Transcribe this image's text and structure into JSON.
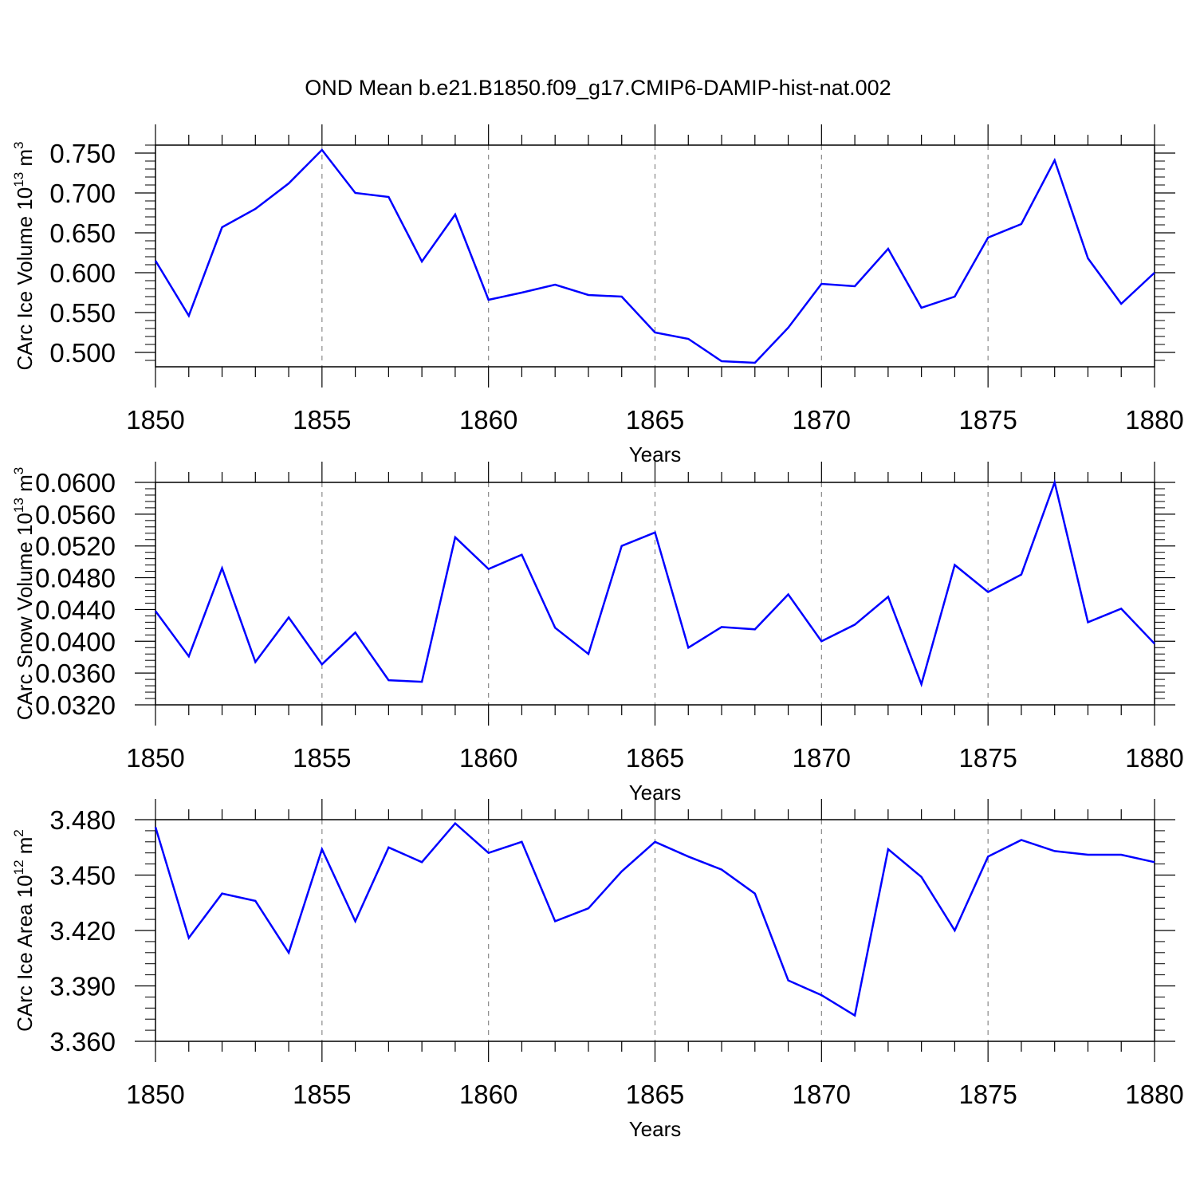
{
  "figure": {
    "title": "OND Mean b.e21.B1850.f09_g17.CMIP6-DAMIP-hist-nat.002"
  },
  "chart_data": [
    {
      "type": "line",
      "ylabel": "CArc Ice Volume 10",
      "ylabel_sup": "13",
      "ylabel_unit": " m",
      "ylabel_unit_sup": "3",
      "xlabel": "Years",
      "xlim": [
        1850,
        1880
      ],
      "ylim": [
        0.482,
        0.76
      ],
      "x_ticks": [
        "1850",
        "1855",
        "1860",
        "1865",
        "1870",
        "1875",
        "1880"
      ],
      "y_ticks": [
        0.5,
        0.55,
        0.6,
        0.65,
        0.7,
        0.75
      ],
      "y_tick_labels": [
        "0.500",
        "0.550",
        "0.600",
        "0.650",
        "0.700",
        "0.750"
      ],
      "grid": "vertical dashed at major x ticks",
      "color": "#0000ff",
      "x": [
        1850,
        1851,
        1852,
        1853,
        1854,
        1855,
        1856,
        1857,
        1858,
        1859,
        1860,
        1861,
        1862,
        1863,
        1864,
        1865,
        1866,
        1867,
        1868,
        1869,
        1870,
        1871,
        1872,
        1873,
        1874,
        1875,
        1876,
        1877,
        1878,
        1879,
        1880
      ],
      "values": [
        0.615,
        0.546,
        0.657,
        0.68,
        0.712,
        0.754,
        0.7,
        0.695,
        0.614,
        0.673,
        0.566,
        0.575,
        0.585,
        0.572,
        0.57,
        0.525,
        0.517,
        0.489,
        0.487,
        0.531,
        0.586,
        0.583,
        0.63,
        0.556,
        0.57,
        0.644,
        0.661,
        0.741,
        0.618,
        0.561,
        0.6
      ]
    },
    {
      "type": "line",
      "ylabel": "CArc Snow Volume 10",
      "ylabel_sup": "13",
      "ylabel_unit": " m",
      "ylabel_unit_sup": "3",
      "xlabel": "Years",
      "xlim": [
        1850,
        1880
      ],
      "ylim": [
        0.032,
        0.06
      ],
      "x_ticks": [
        "1850",
        "1855",
        "1860",
        "1865",
        "1870",
        "1875",
        "1880"
      ],
      "y_ticks": [
        0.032,
        0.036,
        0.04,
        0.044,
        0.048,
        0.052,
        0.056,
        0.06
      ],
      "y_tick_labels": [
        "0.0320",
        "0.0360",
        "0.0400",
        "0.0440",
        "0.0480",
        "0.0520",
        "0.0560",
        "0.0600"
      ],
      "grid": "vertical dashed at major x ticks",
      "color": "#0000ff",
      "x": [
        1850,
        1851,
        1852,
        1853,
        1854,
        1855,
        1856,
        1857,
        1858,
        1859,
        1860,
        1861,
        1862,
        1863,
        1864,
        1865,
        1866,
        1867,
        1868,
        1869,
        1870,
        1871,
        1872,
        1873,
        1874,
        1875,
        1876,
        1877,
        1878,
        1879,
        1880
      ],
      "values": [
        0.0438,
        0.0381,
        0.0492,
        0.0374,
        0.043,
        0.0371,
        0.0411,
        0.0351,
        0.0349,
        0.0531,
        0.0491,
        0.0509,
        0.0417,
        0.0384,
        0.052,
        0.0537,
        0.0392,
        0.0418,
        0.0415,
        0.0459,
        0.04,
        0.0421,
        0.0456,
        0.0346,
        0.0496,
        0.0462,
        0.0484,
        0.06,
        0.0424,
        0.0441,
        0.0397
      ]
    },
    {
      "type": "line",
      "ylabel": "CArc Ice Area 10",
      "ylabel_sup": "12",
      "ylabel_unit": " m",
      "ylabel_unit_sup": "2",
      "xlabel": "Years",
      "xlim": [
        1850,
        1880
      ],
      "ylim": [
        3.36,
        3.48
      ],
      "x_ticks": [
        "1850",
        "1855",
        "1860",
        "1865",
        "1870",
        "1875",
        "1880"
      ],
      "y_ticks": [
        3.36,
        3.39,
        3.42,
        3.45,
        3.48
      ],
      "y_tick_labels": [
        "3.360",
        "3.390",
        "3.420",
        "3.450",
        "3.480"
      ],
      "grid": "vertical dashed at major x ticks",
      "color": "#0000ff",
      "x": [
        1850,
        1851,
        1852,
        1853,
        1854,
        1855,
        1856,
        1857,
        1858,
        1859,
        1860,
        1861,
        1862,
        1863,
        1864,
        1865,
        1866,
        1867,
        1868,
        1869,
        1870,
        1871,
        1872,
        1873,
        1874,
        1875,
        1876,
        1877,
        1878,
        1879,
        1880
      ],
      "values": [
        3.476,
        3.416,
        3.44,
        3.436,
        3.408,
        3.464,
        3.425,
        3.465,
        3.457,
        3.478,
        3.462,
        3.468,
        3.425,
        3.432,
        3.452,
        3.468,
        3.46,
        3.453,
        3.44,
        3.393,
        3.385,
        3.374,
        3.464,
        3.449,
        3.42,
        3.46,
        3.469,
        3.463,
        3.461,
        3.461,
        3.457
      ]
    }
  ]
}
